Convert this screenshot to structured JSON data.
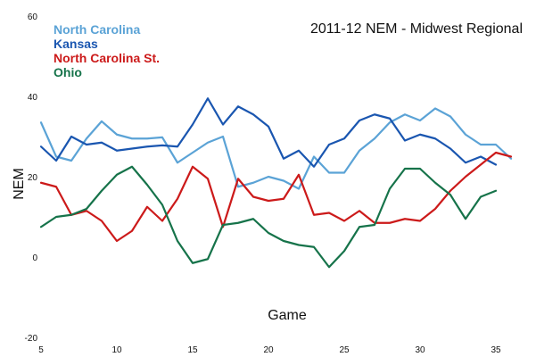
{
  "chart_data": {
    "type": "line",
    "title": "2011-12 NEM - Midwest Regional",
    "xlabel": "Game",
    "ylabel": "NEM",
    "xlim": [
      5,
      37
    ],
    "ylim": [
      -20,
      60
    ],
    "x_ticks": [
      5,
      10,
      15,
      20,
      25,
      30,
      35
    ],
    "y_ticks": [
      -20,
      0,
      20,
      40,
      60
    ],
    "grid": false,
    "legend_position": "top-left",
    "x": [
      5,
      6,
      7,
      8,
      9,
      10,
      11,
      12,
      13,
      14,
      15,
      16,
      17,
      18,
      19,
      20,
      21,
      22,
      23,
      24,
      25,
      26,
      27,
      28,
      29,
      30,
      31,
      32,
      33,
      34,
      35,
      36
    ],
    "series": [
      {
        "name": "North Carolina",
        "color": "#5ba3d6",
        "values": [
          33.5,
          25.0,
          24.0,
          29.5,
          33.8,
          30.5,
          29.5,
          29.5,
          29.8,
          23.5,
          26.0,
          28.5,
          30.0,
          17.5,
          18.5,
          20.0,
          19.0,
          17.0,
          25.0,
          21.0,
          21.0,
          26.5,
          29.5,
          33.5,
          35.5,
          34.0,
          37.0,
          35.0,
          30.5,
          28.0,
          28.0,
          24.5
        ]
      },
      {
        "name": "Kansas",
        "color": "#1a56b0",
        "values": [
          27.5,
          24.0,
          30.0,
          28.0,
          28.5,
          26.5,
          27.0,
          27.5,
          27.8,
          27.5,
          33.0,
          39.5,
          33.0,
          37.5,
          35.5,
          32.5,
          24.5,
          26.5,
          22.5,
          28.0,
          29.5,
          34.0,
          35.5,
          34.5,
          29.0,
          30.5,
          29.5,
          27.0,
          23.5,
          25.0,
          23.0,
          null
        ]
      },
      {
        "name": "North Carolina St.",
        "color": "#cc1a1a",
        "values": [
          18.5,
          17.5,
          10.5,
          11.5,
          9.0,
          4.0,
          6.5,
          12.5,
          9.0,
          14.5,
          22.5,
          19.5,
          7.5,
          19.5,
          15.0,
          14.0,
          14.5,
          20.5,
          10.5,
          11.0,
          9.0,
          11.5,
          8.5,
          8.5,
          9.5,
          9.0,
          12.0,
          16.5,
          20.0,
          23.0,
          26.0,
          25.0
        ]
      },
      {
        "name": "Ohio",
        "color": "#16734a",
        "values": [
          7.5,
          10.0,
          10.5,
          12.0,
          16.5,
          20.5,
          22.5,
          18.0,
          13.0,
          4.0,
          -1.5,
          -0.5,
          8.0,
          8.5,
          9.5,
          6.0,
          4.0,
          3.0,
          2.5,
          -2.5,
          1.5,
          7.5,
          8.0,
          17.0,
          22.0,
          22.0,
          18.5,
          15.5,
          9.5,
          15.0,
          16.5,
          null
        ]
      }
    ]
  }
}
